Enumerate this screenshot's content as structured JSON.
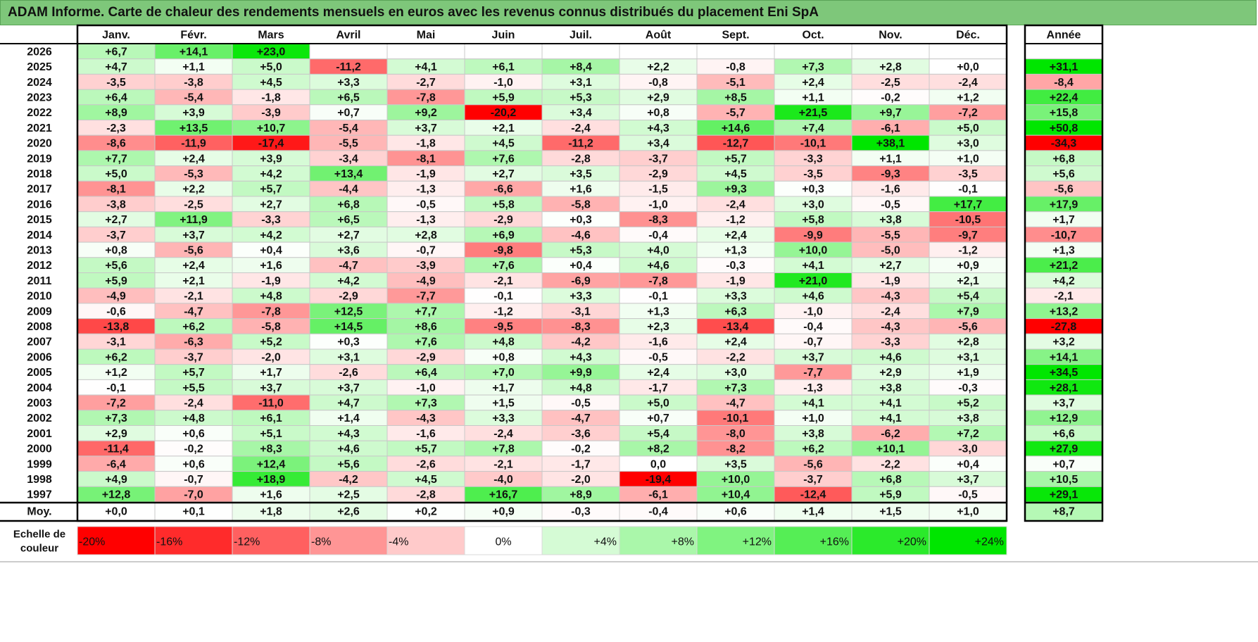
{
  "title": "ADAM Informe. Carte de chaleur des rendements mensuels en euros avec les revenus connus distribués du placement Eni SpA",
  "chart_data": {
    "type": "heatmap",
    "title": "ADAM Informe. Carte de chaleur des rendements mensuels en euros avec les revenus connus distribués du placement Eni SpA",
    "columns": [
      "Janv.",
      "Févr.",
      "Mars",
      "Avril",
      "Mai",
      "Juin",
      "Juil.",
      "Août",
      "Sept.",
      "Oct.",
      "Nov.",
      "Déc."
    ],
    "year_column_label": "Année",
    "rows": [
      {
        "year": "2026",
        "values": [
          "+6,7",
          "+14,1",
          "+23,0",
          "",
          "",
          "",
          "",
          "",
          "",
          "",
          "",
          ""
        ],
        "annual": ""
      },
      {
        "year": "2025",
        "values": [
          "+4,7",
          "+1,1",
          "+5,0",
          "-11,2",
          "+4,1",
          "+6,1",
          "+8,4",
          "+2,2",
          "-0,8",
          "+7,3",
          "+2,8",
          "+0,0"
        ],
        "annual": "+31,1"
      },
      {
        "year": "2024",
        "values": [
          "-3,5",
          "-3,8",
          "+4,5",
          "+3,3",
          "-2,7",
          "-1,0",
          "+3,1",
          "-0,8",
          "-5,1",
          "+2,4",
          "-2,5",
          "-2,4"
        ],
        "annual": "-8,4"
      },
      {
        "year": "2023",
        "values": [
          "+6,4",
          "-5,4",
          "-1,8",
          "+6,5",
          "-7,8",
          "+5,9",
          "+5,3",
          "+2,9",
          "+8,5",
          "+1,1",
          "-0,2",
          "+1,2"
        ],
        "annual": "+22,4"
      },
      {
        "year": "2022",
        "values": [
          "+8,9",
          "+3,9",
          "-3,9",
          "+0,7",
          "+9,2",
          "-20,2",
          "+3,4",
          "+0,8",
          "-5,7",
          "+21,5",
          "+9,7",
          "-7,2"
        ],
        "annual": "+15,8"
      },
      {
        "year": "2021",
        "values": [
          "-2,3",
          "+13,5",
          "+10,7",
          "-5,4",
          "+3,7",
          "+2,1",
          "-2,4",
          "+4,3",
          "+14,6",
          "+7,4",
          "-6,1",
          "+5,0"
        ],
        "annual": "+50,8"
      },
      {
        "year": "2020",
        "values": [
          "-8,6",
          "-11,9",
          "-17,4",
          "-5,5",
          "-1,8",
          "+4,5",
          "-11,2",
          "+3,4",
          "-12,7",
          "-10,1",
          "+38,1",
          "+3,0"
        ],
        "annual": "-34,3"
      },
      {
        "year": "2019",
        "values": [
          "+7,7",
          "+2,4",
          "+3,9",
          "-3,4",
          "-8,1",
          "+7,6",
          "-2,8",
          "-3,7",
          "+5,7",
          "-3,3",
          "+1,1",
          "+1,0"
        ],
        "annual": "+6,8"
      },
      {
        "year": "2018",
        "values": [
          "+5,0",
          "-5,3",
          "+4,2",
          "+13,4",
          "-1,9",
          "+2,7",
          "+3,5",
          "-2,9",
          "+4,5",
          "-3,5",
          "-9,3",
          "-3,5"
        ],
        "annual": "+5,6"
      },
      {
        "year": "2017",
        "values": [
          "-8,1",
          "+2,2",
          "+5,7",
          "-4,4",
          "-1,3",
          "-6,6",
          "+1,6",
          "-1,5",
          "+9,3",
          "+0,3",
          "-1,6",
          "-0,1"
        ],
        "annual": "-5,6"
      },
      {
        "year": "2016",
        "values": [
          "-3,8",
          "-2,5",
          "+2,7",
          "+6,8",
          "-0,5",
          "+5,8",
          "-5,8",
          "-1,0",
          "-2,4",
          "+3,0",
          "-0,5",
          "+17,7"
        ],
        "annual": "+17,9"
      },
      {
        "year": "2015",
        "values": [
          "+2,7",
          "+11,9",
          "-3,3",
          "+6,5",
          "-1,3",
          "-2,9",
          "+0,3",
          "-8,3",
          "-1,2",
          "+5,8",
          "+3,8",
          "-10,5"
        ],
        "annual": "+1,7"
      },
      {
        "year": "2014",
        "values": [
          "-3,7",
          "+3,7",
          "+4,2",
          "+2,7",
          "+2,8",
          "+6,9",
          "-4,6",
          "-0,4",
          "+2,4",
          "-9,9",
          "-5,5",
          "-9,7"
        ],
        "annual": "-10,7"
      },
      {
        "year": "2013",
        "values": [
          "+0,8",
          "-5,6",
          "+0,4",
          "+3,6",
          "-0,7",
          "-9,8",
          "+5,3",
          "+4,0",
          "+1,3",
          "+10,0",
          "-5,0",
          "-1,2"
        ],
        "annual": "+1,3"
      },
      {
        "year": "2012",
        "values": [
          "+5,6",
          "+2,4",
          "+1,6",
          "-4,7",
          "-3,9",
          "+7,6",
          "+0,4",
          "+4,6",
          "-0,3",
          "+4,1",
          "+2,7",
          "+0,9"
        ],
        "annual": "+21,2"
      },
      {
        "year": "2011",
        "values": [
          "+5,9",
          "+2,1",
          "-1,9",
          "+4,2",
          "-4,9",
          "-2,1",
          "-6,9",
          "-7,8",
          "-1,9",
          "+21,0",
          "-1,9",
          "+2,1"
        ],
        "annual": "+4,2"
      },
      {
        "year": "2010",
        "values": [
          "-4,9",
          "-2,1",
          "+4,8",
          "-2,9",
          "-7,7",
          "-0,1",
          "+3,3",
          "-0,1",
          "+3,3",
          "+4,6",
          "-4,3",
          "+5,4"
        ],
        "annual": "-2,1"
      },
      {
        "year": "2009",
        "values": [
          "-0,6",
          "-4,7",
          "-7,8",
          "+12,5",
          "+7,7",
          "-1,2",
          "-3,1",
          "+1,3",
          "+6,3",
          "-1,0",
          "-2,4",
          "+7,9"
        ],
        "annual": "+13,2"
      },
      {
        "year": "2008",
        "values": [
          "-13,8",
          "+6,2",
          "-5,8",
          "+14,5",
          "+8,6",
          "-9,5",
          "-8,3",
          "+2,3",
          "-13,4",
          "-0,4",
          "-4,3",
          "-5,6"
        ],
        "annual": "-27,8"
      },
      {
        "year": "2007",
        "values": [
          "-3,1",
          "-6,3",
          "+5,2",
          "+0,3",
          "+7,6",
          "+4,8",
          "-4,2",
          "-1,6",
          "+2,4",
          "-0,7",
          "-3,3",
          "+2,8"
        ],
        "annual": "+3,2"
      },
      {
        "year": "2006",
        "values": [
          "+6,2",
          "-3,7",
          "-2,0",
          "+3,1",
          "-2,9",
          "+0,8",
          "+4,3",
          "-0,5",
          "-2,2",
          "+3,7",
          "+4,6",
          "+3,1"
        ],
        "annual": "+14,1"
      },
      {
        "year": "2005",
        "values": [
          "+1,2",
          "+5,7",
          "+1,7",
          "-2,6",
          "+6,4",
          "+7,0",
          "+9,9",
          "+2,4",
          "+3,0",
          "-7,7",
          "+2,9",
          "+1,9"
        ],
        "annual": "+34,5"
      },
      {
        "year": "2004",
        "values": [
          "-0,1",
          "+5,5",
          "+3,7",
          "+3,7",
          "-1,0",
          "+1,7",
          "+4,8",
          "-1,7",
          "+7,3",
          "-1,3",
          "+3,8",
          "-0,3"
        ],
        "annual": "+28,1"
      },
      {
        "year": "2003",
        "values": [
          "-7,2",
          "-2,4",
          "-11,0",
          "+4,7",
          "+7,3",
          "+1,5",
          "-0,5",
          "+5,0",
          "-4,7",
          "+4,1",
          "+4,1",
          "+5,2"
        ],
        "annual": "+3,7"
      },
      {
        "year": "2002",
        "values": [
          "+7,3",
          "+4,8",
          "+6,1",
          "+1,4",
          "-4,3",
          "+3,3",
          "-4,7",
          "+0,7",
          "-10,1",
          "+1,0",
          "+4,1",
          "+3,8"
        ],
        "annual": "+12,9"
      },
      {
        "year": "2001",
        "values": [
          "+2,9",
          "+0,6",
          "+5,1",
          "+4,3",
          "-1,6",
          "-2,4",
          "-3,6",
          "+5,4",
          "-8,0",
          "+3,8",
          "-6,2",
          "+7,2"
        ],
        "annual": "+6,6"
      },
      {
        "year": "2000",
        "values": [
          "-11,4",
          "-0,2",
          "+8,3",
          "+4,6",
          "+5,7",
          "+7,8",
          "-0,2",
          "+8,2",
          "-8,2",
          "+6,2",
          "+10,1",
          "-3,0"
        ],
        "annual": "+27,9"
      },
      {
        "year": "1999",
        "values": [
          "-6,4",
          "+0,6",
          "+12,4",
          "+5,6",
          "-2,6",
          "-2,1",
          "-1,7",
          "0,0",
          "+3,5",
          "-5,6",
          "-2,2",
          "+0,4"
        ],
        "annual": "+0,7"
      },
      {
        "year": "1998",
        "values": [
          "+4,9",
          "-0,7",
          "+18,9",
          "-4,2",
          "+4,5",
          "-4,0",
          "-2,0",
          "-19,4",
          "+10,0",
          "-3,7",
          "+6,8",
          "+3,7"
        ],
        "annual": "+10,5"
      },
      {
        "year": "1997",
        "values": [
          "+12,8",
          "-7,0",
          "+1,6",
          "+2,5",
          "-2,8",
          "+16,7",
          "+8,9",
          "-6,1",
          "+10,4",
          "-12,4",
          "+5,9",
          "-0,5"
        ],
        "annual": "+29,1"
      }
    ],
    "average": {
      "label": "Moy.",
      "values": [
        "+0,0",
        "+0,1",
        "+1,8",
        "+2,6",
        "+0,2",
        "+0,9",
        "-0,3",
        "-0,4",
        "+0,6",
        "+1,4",
        "+1,5",
        "+1,0"
      ],
      "annual": "+8,7"
    },
    "color_scale": {
      "label_line1": "Echelle de",
      "label_line2": "couleur",
      "stops": [
        "-20%",
        "-16%",
        "-12%",
        "-8%",
        "-4%",
        "0%",
        "+4%",
        "+8%",
        "+12%",
        "+16%",
        "+20%",
        "+24%"
      ]
    },
    "colors": {
      "positive_max": "#00e600",
      "negative_max": "#ff0000",
      "neutral": "#ffffff",
      "title_bg": "#7ec77a"
    }
  }
}
